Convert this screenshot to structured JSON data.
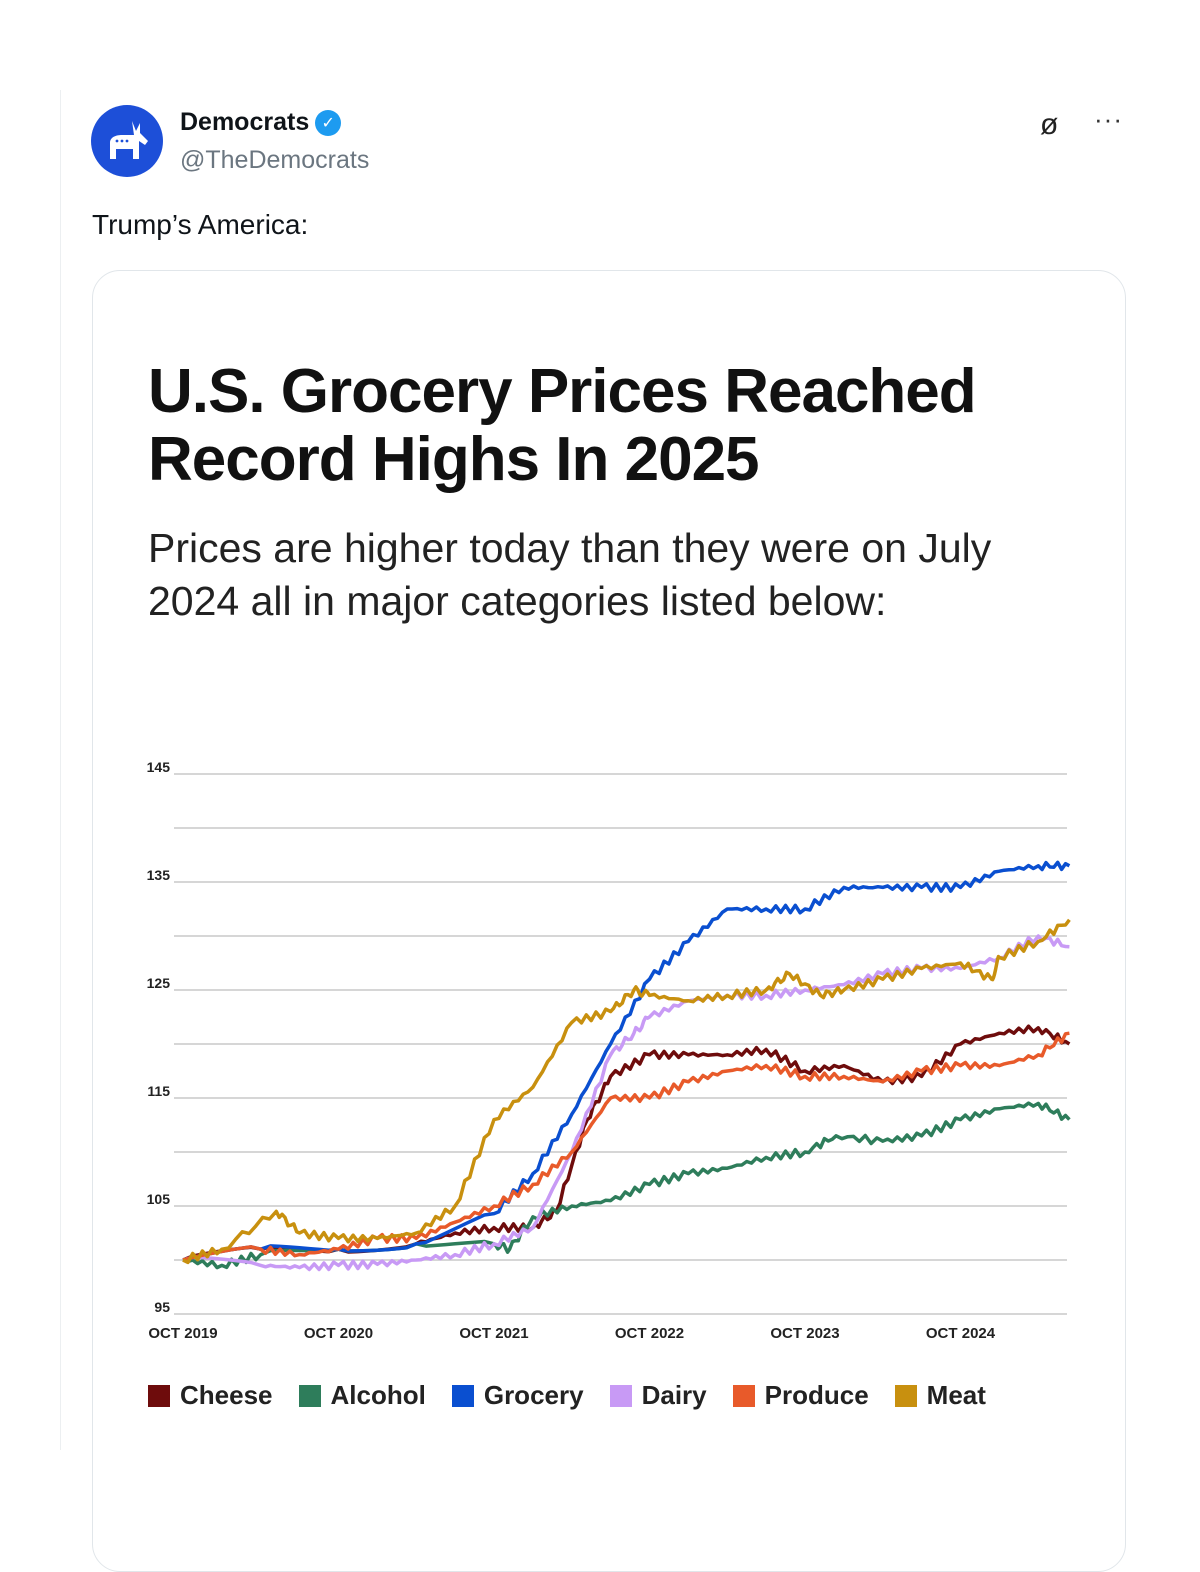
{
  "tweet": {
    "author_name": "Democrats",
    "author_handle": "@TheDemocrats",
    "text": "Trump’s America:",
    "verified_icon": "check-badge-icon",
    "more_label": "···",
    "grok_label": "ø"
  },
  "chart_data": {
    "type": "line",
    "title": "U.S. Grocery Prices Reached Record Highs In 2025",
    "subtitle": "Prices are higher today than they were on July 2024 all in major categories listed below:",
    "xlabel": "",
    "ylabel": "",
    "x_unit": "years since Oct 2019",
    "xlim": [
      0,
      5.7
    ],
    "ylim": [
      95,
      145
    ],
    "yticks": [
      145,
      135,
      125,
      115,
      105,
      95
    ],
    "ygrid": [
      145,
      140,
      135,
      130,
      125,
      120,
      115,
      110,
      105,
      100,
      95
    ],
    "xticks": [
      {
        "x": 0,
        "label": "OCT 2019"
      },
      {
        "x": 1,
        "label": "OCT 2020"
      },
      {
        "x": 2,
        "label": "OCT 2021"
      },
      {
        "x": 3,
        "label": "OCT 2022"
      },
      {
        "x": 4,
        "label": "OCT 2023"
      },
      {
        "x": 5,
        "label": "OCT 2024"
      }
    ],
    "grid": true,
    "legend_position": "bottom",
    "series": [
      {
        "name": "Cheese",
        "color": "#6e0c0c",
        "x": [
          0,
          0.5,
          1,
          1.5,
          1.75,
          2,
          2.25,
          2.4,
          2.6,
          2.75,
          3,
          3.25,
          3.5,
          3.75,
          4,
          4.25,
          4.5,
          4.75,
          5,
          5.25,
          5.5,
          5.7
        ],
        "y": [
          100,
          101,
          101,
          101.5,
          102.5,
          103,
          103,
          104.5,
          113,
          117,
          119,
          119,
          119,
          119.5,
          117.5,
          118,
          116.5,
          117,
          120,
          121,
          121.5,
          120
        ]
      },
      {
        "name": "Alcohol",
        "color": "#2e7d5b",
        "x": [
          0,
          0.25,
          0.5,
          1,
          1.5,
          2,
          2.1,
          2.25,
          2.5,
          2.75,
          3,
          3.25,
          3.5,
          3.75,
          4,
          4.2,
          4.5,
          4.75,
          5,
          5.25,
          5.5,
          5.7
        ],
        "y": [
          100,
          99.5,
          100.5,
          101,
          101.5,
          101.5,
          101,
          104,
          105,
          105.5,
          107,
          108,
          108.5,
          109.5,
          110,
          111.5,
          111,
          111.5,
          113,
          114,
          114.5,
          113
        ]
      },
      {
        "name": "Grocery",
        "color": "#0a4fd0",
        "x": [
          0,
          0.5,
          1,
          1.5,
          2,
          2.25,
          2.5,
          2.75,
          3,
          3.25,
          3.5,
          3.75,
          4,
          4.25,
          4.5,
          4.75,
          5,
          5.25,
          5.5,
          5.7
        ],
        "y": [
          100,
          101,
          101,
          101.5,
          104.3,
          108,
          113.5,
          120,
          126,
          129.5,
          132.5,
          132.5,
          132.5,
          134.5,
          134.5,
          134.5,
          134.5,
          136,
          136.5,
          136.5
        ]
      },
      {
        "name": "Dairy",
        "color": "#c89af5",
        "x": [
          0,
          0.5,
          0.75,
          1,
          1.25,
          1.5,
          1.75,
          2,
          2.25,
          2.5,
          2.75,
          2.9,
          3,
          3.25,
          3.5,
          3.75,
          4,
          4.25,
          4.5,
          4.75,
          5,
          5.25,
          5.5,
          5.7
        ],
        "y": [
          100,
          99.5,
          99.3,
          99.5,
          99.6,
          100,
          100.5,
          101.5,
          103,
          110,
          119,
          121,
          122.5,
          124,
          124.5,
          124.5,
          125,
          125.5,
          126.5,
          127,
          127,
          128,
          130,
          129
        ]
      },
      {
        "name": "Produce",
        "color": "#e85a2a",
        "x": [
          0,
          0.5,
          0.75,
          1,
          1.25,
          1.5,
          1.75,
          2,
          2.25,
          2.5,
          2.75,
          3,
          3.25,
          3.5,
          3.75,
          4,
          4.25,
          4.5,
          4.75,
          5,
          5.25,
          5.5,
          5.7
        ],
        "y": [
          100,
          101,
          100.5,
          101,
          102,
          102,
          103.5,
          105,
          107,
          110,
          115,
          115,
          116.5,
          117.5,
          118,
          117,
          117,
          116.5,
          117.5,
          118,
          118,
          119,
          121
        ]
      },
      {
        "name": "Meat",
        "color": "#c8900f",
        "x": [
          0,
          0.25,
          0.6,
          0.75,
          1,
          1.25,
          1.5,
          1.75,
          2,
          2.25,
          2.5,
          2.75,
          2.9,
          3,
          3.25,
          3.5,
          3.75,
          3.9,
          4.1,
          4.25,
          4.5,
          4.75,
          5,
          5.2,
          5.25,
          5.5,
          5.7
        ],
        "y": [
          100,
          101,
          104.5,
          102.5,
          102,
          102,
          102.5,
          105,
          113,
          116,
          122,
          123,
          125,
          124.5,
          124,
          124.5,
          125,
          126.5,
          124.5,
          125,
          126,
          127,
          127.5,
          126,
          128,
          129.5,
          131.5
        ]
      }
    ]
  }
}
